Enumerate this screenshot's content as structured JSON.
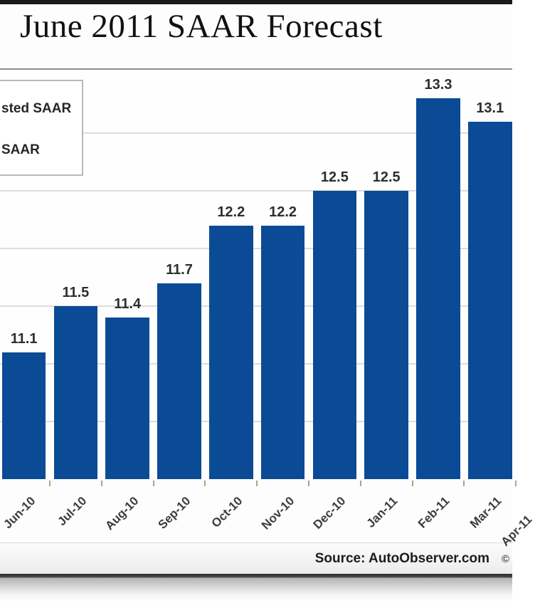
{
  "header": {
    "title": "June 2011 SAAR Forecast"
  },
  "legend": {
    "items": [
      {
        "label": "sted SAAR"
      },
      {
        "label": "SAAR"
      }
    ]
  },
  "chart_data": {
    "type": "bar",
    "title": "June 2011 SAAR Forecast",
    "categories": [
      "Jun-10",
      "Jul-10",
      "Aug-10",
      "Sep-10",
      "Oct-10",
      "Nov-10",
      "Dec-10",
      "Jan-11",
      "Feb-11",
      "Mar-11"
    ],
    "values": [
      11.1,
      11.5,
      11.4,
      11.7,
      12.2,
      12.2,
      12.5,
      12.5,
      13.3,
      13.1
    ],
    "value_labels": [
      "11.1",
      "11.5",
      "11.4",
      "11.7",
      "12.2",
      "12.2",
      "12.5",
      "12.5",
      "13.3",
      "13.1"
    ],
    "partial_next_category": "Apr-11",
    "xlabel": "",
    "ylabel": "",
    "ylim": [
      10.0,
      13.55
    ],
    "gridline_step": 0.5,
    "grid": "horizontal-only",
    "legend_position": "top-left",
    "bar_color": "#0B4B95"
  },
  "footer": {
    "source_label": "Source: AutoObserver.com",
    "copyright_symbol": "©"
  }
}
